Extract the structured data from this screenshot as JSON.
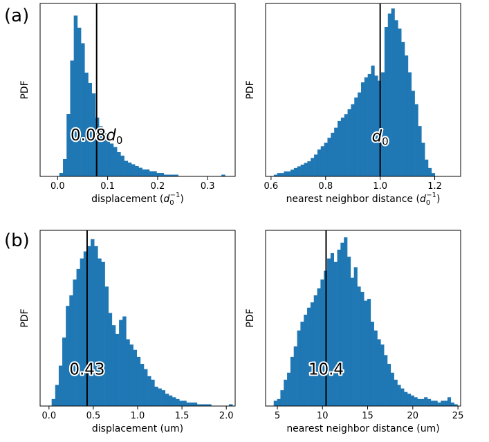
{
  "panel_labels": [
    "(a)",
    "(b)"
  ],
  "chart_data": [
    {
      "type": "bar",
      "panel": "(a)",
      "xlabel_main": "displacement (",
      "xlabel_d": "d",
      "xlabel_sub": "0",
      "xlabel_sup": "−1",
      "xlabel_tail": ")",
      "ylabel": "PDF",
      "xlim": [
        -0.035,
        0.355
      ],
      "xticks": [
        0.0,
        0.1,
        0.2,
        0.3
      ],
      "xtick_labels": [
        "0.0",
        "0.1",
        "0.2",
        "0.3"
      ],
      "bin_start": 0.0035,
      "bin_width": 0.0072,
      "values": [
        2,
        10,
        36,
        67,
        93,
        86,
        77,
        60,
        54,
        48,
        34,
        29,
        25,
        23,
        19,
        17,
        14,
        12,
        9,
        8,
        7,
        6,
        5,
        4,
        4,
        3,
        3,
        2,
        2,
        1,
        1,
        1,
        1,
        0,
        0,
        0,
        0,
        0,
        0,
        0,
        0,
        0,
        0,
        0,
        0,
        1
      ],
      "ymax": 100,
      "vline": 0.078,
      "annotation_main": "0.08",
      "annotation_var": "d",
      "annotation_sub": "0",
      "annotation_x": 0.078,
      "annotation_y": 24
    },
    {
      "type": "bar",
      "panel": "(a)",
      "xlabel_main": "nearest neighbor distance (",
      "xlabel_d": "d",
      "xlabel_sub": "0",
      "xlabel_sup": "−1",
      "xlabel_tail": ")",
      "ylabel": "PDF",
      "xlim": [
        0.58,
        1.295
      ],
      "xticks": [
        0.6,
        0.8,
        1.0,
        1.2
      ],
      "xtick_labels": [
        "0.6",
        "0.8",
        "1.0",
        "1.2"
      ],
      "bin_start": 0.61,
      "bin_width": 0.0123,
      "values": [
        1,
        2,
        2,
        3,
        3,
        4,
        5,
        6,
        7,
        8,
        9,
        11,
        13,
        16,
        18,
        20,
        23,
        26,
        29,
        33,
        35,
        37,
        40,
        43,
        47,
        50,
        56,
        59,
        61,
        66,
        60,
        57,
        62,
        89,
        97,
        100,
        93,
        88,
        80,
        72,
        62,
        51,
        43,
        30,
        20,
        10,
        5,
        2
      ],
      "ymax": 103,
      "vline": 1.0,
      "annotation_main": "",
      "annotation_var": "d",
      "annotation_sub": "0",
      "annotation_x": 1.0,
      "annotation_y": 24
    },
    {
      "type": "bar",
      "panel": "(b)",
      "xlabel": "displacement (um)",
      "ylabel": "PDF",
      "xlim": [
        -0.1,
        2.1
      ],
      "xticks": [
        0.0,
        0.5,
        1.0,
        1.5,
        2.0
      ],
      "xtick_labels": [
        "0.0",
        "0.5",
        "1.0",
        "1.5",
        "2.0"
      ],
      "bin_start": 0.03,
      "bin_width": 0.04,
      "values": [
        4,
        12,
        23,
        39,
        57,
        63,
        72,
        78,
        84,
        88,
        91,
        95,
        91,
        84,
        82,
        68,
        53,
        46,
        41,
        49,
        51,
        38,
        35,
        32,
        28,
        24,
        21,
        17,
        15,
        11,
        10,
        9,
        7,
        6,
        5,
        4,
        3,
        3,
        2,
        2,
        2,
        1,
        1,
        1,
        1,
        0,
        0,
        0,
        0,
        0,
        1
      ],
      "ymax": 100,
      "vline": 0.43,
      "annotation_main": "0.43",
      "annotation_x": 0.43,
      "annotation_y": 21
    },
    {
      "type": "bar",
      "panel": "(b)",
      "xlabel": "nearest neighbor distance (um)",
      "ylabel": "PDF",
      "xlim": [
        3.7,
        25.3
      ],
      "xticks": [
        5,
        10,
        15,
        20,
        25
      ],
      "xtick_labels": [
        "5",
        "10",
        "15",
        "20",
        "25"
      ],
      "bin_start": 4.6,
      "bin_width": 0.37,
      "values": [
        3,
        4,
        9,
        15,
        19,
        28,
        34,
        43,
        48,
        52,
        56,
        59,
        63,
        67,
        72,
        77,
        84,
        87,
        82,
        89,
        93,
        96,
        85,
        73,
        79,
        68,
        65,
        60,
        61,
        48,
        43,
        38,
        35,
        29,
        24,
        19,
        15,
        12,
        10,
        8,
        7,
        6,
        5,
        4,
        4,
        5,
        4,
        3,
        3,
        2,
        3,
        3,
        5,
        2,
        1
      ],
      "ymax": 100,
      "vline": 10.4,
      "annotation_main": "10.4",
      "annotation_x": 10.4,
      "annotation_y": 21
    }
  ]
}
